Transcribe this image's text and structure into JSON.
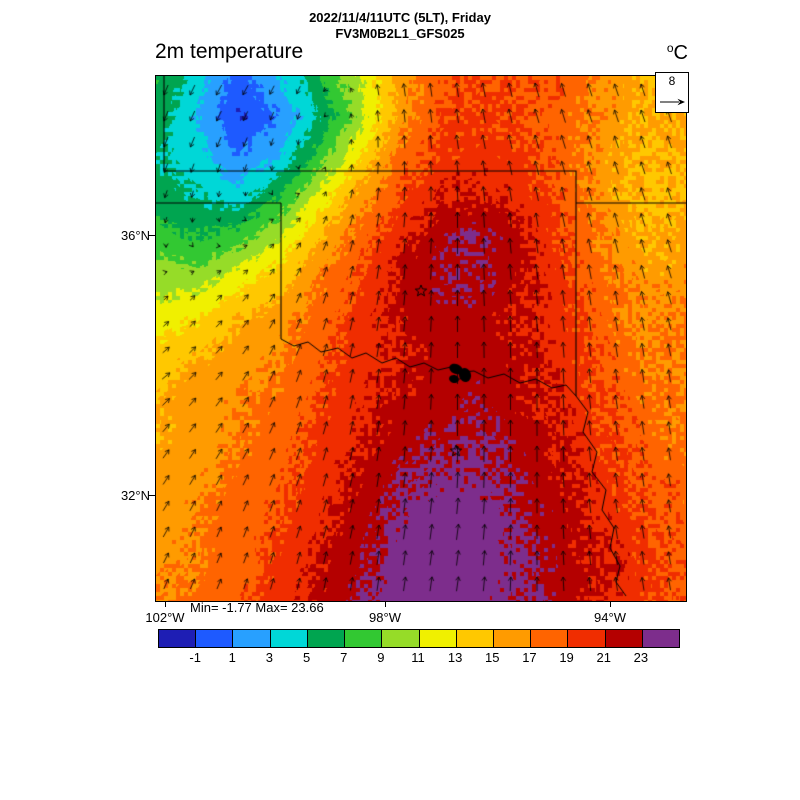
{
  "header": {
    "line1": "2022/11/4/11UTC (5LT), Friday",
    "line2": "FV3M0B2L1_GFS025"
  },
  "map": {
    "title": "2m temperature",
    "units_sup": "o",
    "units_base": "C",
    "ref_vector_label": "8",
    "lat_ticks": [
      "36°N",
      "32°N"
    ],
    "lon_ticks": [
      "102°W",
      "98°W",
      "94°W"
    ],
    "stats": "Min= -1.77 Max= 23.66"
  },
  "colorbar": {
    "tick_labels": [
      "-1",
      "1",
      "3",
      "5",
      "7",
      "9",
      "11",
      "13",
      "15",
      "17",
      "19",
      "21",
      "23"
    ]
  },
  "chart_data": {
    "type": "heatmap",
    "title": "2m temperature",
    "units": "°C",
    "datetime": "2022/11/4/11UTC (5LT), Friday",
    "model": "FV3M0B2L1_GFS025",
    "min": -1.77,
    "max": 23.66,
    "region": {
      "lon_range_deg_w": [
        102.2,
        92.6
      ],
      "lat_range_deg_n": [
        38.5,
        30.4
      ],
      "lat_tick_values_deg_n": [
        36,
        32
      ],
      "lon_tick_values_deg_w": [
        102,
        98,
        94
      ]
    },
    "levels": [
      -1,
      1,
      3,
      5,
      7,
      9,
      11,
      13,
      15,
      17,
      19,
      21,
      23
    ],
    "palette": [
      "#1e1eb4",
      "#1e5aff",
      "#28a0ff",
      "#00d7d7",
      "#00a550",
      "#32c832",
      "#96dc28",
      "#f0f000",
      "#ffc800",
      "#ff9b00",
      "#ff6400",
      "#f02d00",
      "#b40000",
      "#7d2d8c"
    ],
    "temperature_grid_c": {
      "orientation": "rows north to south, cols west to east",
      "values": [
        [
          7,
          4,
          0,
          3,
          7,
          11,
          16,
          18.5,
          19,
          19,
          18.5,
          16.5,
          15,
          15
        ],
        [
          6,
          3,
          -1,
          1,
          5,
          10,
          16,
          19,
          19.5,
          19,
          18,
          16.5,
          15,
          15.5
        ],
        [
          5,
          4,
          1,
          3,
          8,
          13,
          18,
          19.5,
          20,
          19.5,
          18,
          16,
          15,
          15
        ],
        [
          6,
          5,
          4,
          7,
          12,
          16,
          19,
          21,
          21,
          20,
          18.5,
          16,
          14.5,
          15
        ],
        [
          8,
          7,
          8,
          11,
          15,
          18,
          20.5,
          22.5,
          23,
          21.5,
          19,
          17,
          15,
          16
        ],
        [
          10,
          10,
          12,
          14,
          17,
          19,
          21.5,
          23,
          22.8,
          21.5,
          19.5,
          17.5,
          16,
          16
        ],
        [
          12,
          13,
          15,
          16,
          18,
          20,
          21.5,
          22,
          22,
          21,
          20,
          18,
          16.5,
          17
        ],
        [
          14,
          15,
          16,
          17,
          18.5,
          20,
          21,
          22,
          22,
          21.5,
          20,
          18.5,
          17,
          17
        ],
        [
          15,
          16,
          17,
          17.5,
          19,
          20.5,
          21.5,
          22,
          22.5,
          21.5,
          20.5,
          19,
          17.5,
          17
        ],
        [
          15,
          16,
          17,
          18,
          19.5,
          21,
          22,
          23,
          23,
          22,
          21,
          19.5,
          18,
          17.5
        ],
        [
          16,
          16.5,
          17.5,
          18.5,
          20,
          21.5,
          23,
          23.5,
          23.5,
          22.5,
          21.5,
          20,
          18.5,
          18
        ],
        [
          16,
          17,
          18,
          19,
          20.5,
          22,
          23.5,
          24,
          24,
          23,
          22,
          20.5,
          19,
          18
        ],
        [
          16.5,
          17,
          18,
          19.5,
          21,
          22.5,
          24,
          24.2,
          24,
          23.2,
          22,
          21,
          19.5,
          18.5
        ],
        [
          17,
          17.5,
          18.5,
          20,
          21.5,
          23,
          24,
          24.3,
          24,
          23.3,
          22.3,
          21,
          19.5,
          18.5
        ]
      ]
    },
    "wind": {
      "ref_speed": 8,
      "orientation": "rows north to south, cols west to east",
      "u_grid": [
        [
          -2,
          -3,
          -2,
          -1,
          -1,
          -2,
          -2,
          -2
        ],
        [
          -2,
          -2,
          0,
          0,
          -1,
          -2,
          -2,
          -2
        ],
        [
          -1,
          1,
          2,
          1,
          0,
          -1,
          -2,
          -2
        ],
        [
          2,
          3,
          2,
          1,
          0,
          -1,
          -1,
          -2
        ],
        [
          4,
          3,
          2,
          1,
          0,
          0,
          -1,
          -1
        ],
        [
          3,
          3,
          2,
          1,
          0,
          0,
          -1,
          -1
        ],
        [
          3,
          2,
          2,
          1,
          1,
          0,
          -1,
          -1
        ],
        [
          2,
          2,
          1,
          1,
          1,
          0,
          -1,
          -1
        ]
      ],
      "v_grid": [
        [
          -5,
          -5,
          -4,
          6,
          7,
          7,
          6,
          6
        ],
        [
          -5,
          -5,
          -2,
          6,
          7,
          7,
          6,
          6
        ],
        [
          -3,
          -1,
          3,
          7,
          8,
          7,
          7,
          6
        ],
        [
          2,
          3,
          5,
          7,
          8,
          8,
          7,
          6
        ],
        [
          3,
          4,
          6,
          7,
          8,
          8,
          7,
          6
        ],
        [
          4,
          5,
          6,
          7,
          8,
          8,
          7,
          6
        ],
        [
          5,
          5,
          6,
          7,
          8,
          7,
          7,
          6
        ],
        [
          5,
          5,
          6,
          7,
          7,
          7,
          7,
          6
        ]
      ]
    }
  }
}
